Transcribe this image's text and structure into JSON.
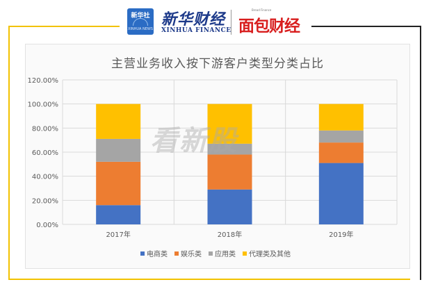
{
  "header": {
    "xinhua_logo_top": "新华社",
    "xinhua_logo_bottom": "XINHUA NEWS",
    "brand_cn": "新华财经",
    "brand_en": "XINHUA FINANCE",
    "mian_label": "面包财经",
    "mian_en": "Bread Finance",
    "accent": "#f2c200",
    "mian_color": "#d81e1e"
  },
  "watermark": "看新股",
  "chart_data": {
    "type": "bar",
    "stacked": true,
    "title": "主营业务收入按下游客户类型分类占比",
    "categories": [
      "2017年",
      "2018年",
      "2019年"
    ],
    "series": [
      {
        "name": "电商类",
        "values": [
          16,
          29,
          51
        ],
        "color": "#4472c4"
      },
      {
        "name": "娱乐类",
        "values": [
          36,
          29,
          17
        ],
        "color": "#ed7d31"
      },
      {
        "name": "应用类",
        "values": [
          19,
          9,
          10
        ],
        "color": "#a5a5a5"
      },
      {
        "name": "代理类及其他",
        "values": [
          29,
          33,
          22
        ],
        "color": "#ffc000"
      }
    ],
    "yticks": [
      "0.00%",
      "20.00%",
      "40.00%",
      "60.00%",
      "80.00%",
      "100.00%",
      "120.00%"
    ],
    "ylim": [
      0,
      120
    ],
    "grid": true,
    "legend_position": "bottom"
  }
}
